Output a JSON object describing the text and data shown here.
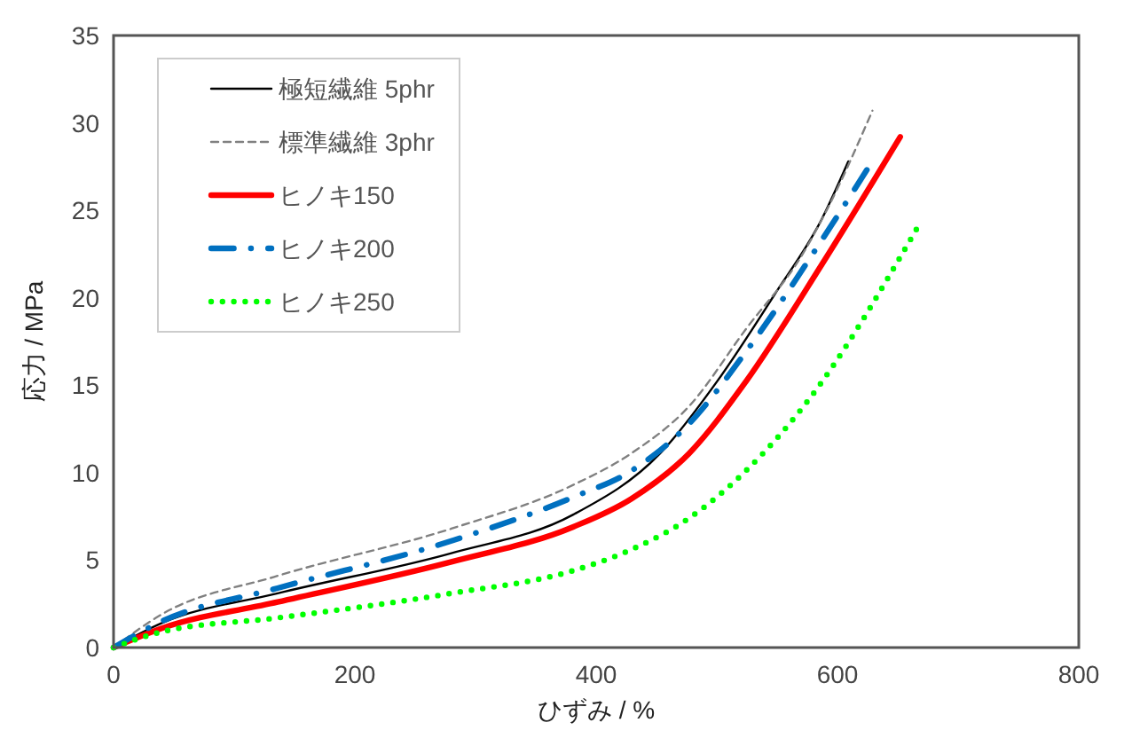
{
  "chart_data": {
    "type": "line",
    "xlabel": "ひずみ / %",
    "ylabel": "応力 / MPa",
    "xlim": [
      0,
      800
    ],
    "xticks": [
      0,
      200,
      400,
      600,
      800
    ],
    "ylim": [
      0,
      35
    ],
    "yticks": [
      0,
      5,
      10,
      15,
      20,
      25,
      30,
      35
    ],
    "grid": false,
    "legend": "top left",
    "series": [
      {
        "name": "極短繊維 5phr",
        "color": "#000000",
        "line_style": "solid",
        "x": [
          0,
          40,
          136,
          280,
          381,
          453,
          500,
          548,
          587,
          609
        ],
        "values": [
          0,
          1.4,
          3.1,
          5.4,
          7.6,
          11.1,
          15.2,
          20.2,
          24.5,
          27.8
        ]
      },
      {
        "name": "標準繊維 3phr",
        "color": "#808080",
        "line_style": "dashed",
        "x": [
          0,
          40,
          136,
          280,
          381,
          429,
          477,
          524,
          572,
          591,
          629
        ],
        "values": [
          0,
          1.9,
          4.1,
          6.8,
          9.3,
          11.1,
          13.8,
          18.2,
          22.6,
          25,
          30.7
        ]
      },
      {
        "name": "ヒノキ150",
        "color": "#ff0000",
        "line_style": "solid",
        "x": [
          0,
          40,
          136,
          280,
          381,
          429,
          477,
          524,
          587,
          652
        ],
        "values": [
          0,
          1.1,
          2.6,
          4.9,
          6.9,
          8.5,
          11.1,
          15.2,
          21.9,
          29.2
        ]
      },
      {
        "name": "ヒノキ200",
        "color": "#0070c0",
        "line_style": "dashdot",
        "x": [
          0,
          40,
          136,
          280,
          381,
          429,
          477,
          524,
          587,
          627
        ],
        "values": [
          0,
          1.5,
          3.4,
          6.1,
          8.6,
          10.1,
          12.8,
          16.9,
          23.3,
          27.6
        ]
      },
      {
        "name": "ヒノキ250",
        "color": "#00ff00",
        "line_style": "dotted",
        "x": [
          0,
          40,
          136,
          280,
          381,
          429,
          477,
          524,
          572,
          667
        ],
        "values": [
          0,
          0.9,
          1.7,
          3.1,
          4.4,
          5.6,
          7.4,
          10.1,
          13.8,
          24.1
        ]
      }
    ]
  }
}
